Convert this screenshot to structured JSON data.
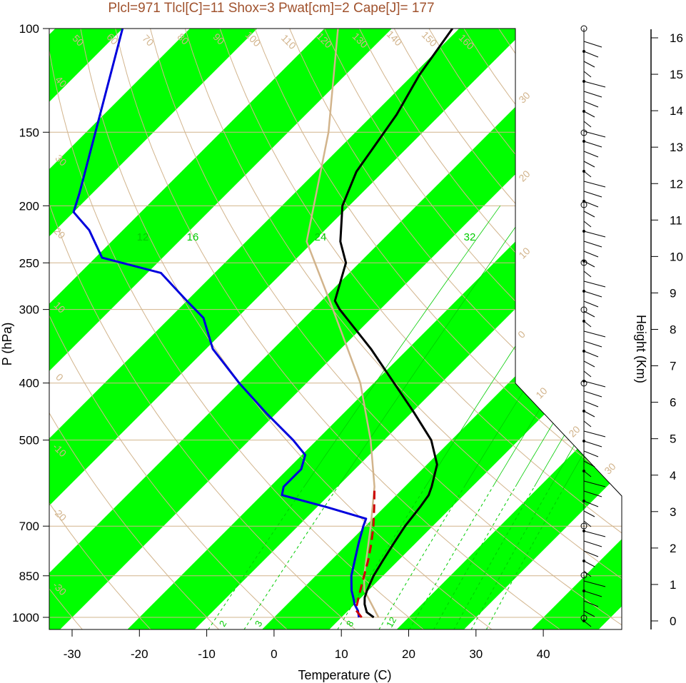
{
  "title": "Plcl=971 Tlcl[C]=11 Shox=3 Pwat[cm]=2 Cape[J]= 177",
  "colors": {
    "band": "#00ff00",
    "isotherm": "#d2b48c",
    "adiabat": "#d2b48c",
    "mixing": "#00cc00",
    "temperature": "#000000",
    "dewpoint": "#0000dd",
    "parcel": "#cc0000",
    "title": "#a0522d"
  },
  "chart_data": {
    "type": "line",
    "subtype": "skew-t log-p",
    "xlabel": "Temperature (C)",
    "ylabel": "P (hPa)",
    "y2label": "Height (Km)",
    "x_ticks": [
      "-30",
      "-20",
      "-10",
      "0",
      "10",
      "20",
      "30",
      "40"
    ],
    "x_tick_values": [
      -30,
      -20,
      -10,
      0,
      10,
      20,
      30,
      40
    ],
    "xlim": [
      -33.5,
      51
    ],
    "y_ticks": [
      "100",
      "150",
      "200",
      "250",
      "300",
      "400",
      "500",
      "700",
      "850",
      "1000"
    ],
    "y_tick_values": [
      100,
      150,
      200,
      250,
      300,
      400,
      500,
      700,
      850,
      1000
    ],
    "ylim": [
      1050,
      100
    ],
    "height_ticks": [
      "0",
      "1",
      "2",
      "3",
      "4",
      "5",
      "6",
      "7",
      "8",
      "9",
      "10",
      "11",
      "12",
      "13",
      "14",
      "15",
      "16"
    ],
    "height_tick_values": [
      0,
      1,
      2,
      3,
      4,
      5,
      6,
      7,
      8,
      9,
      10,
      11,
      12,
      13,
      14,
      15,
      16
    ],
    "isotherm_labels": [
      "50",
      "60",
      "70",
      "80",
      "90",
      "100",
      "110",
      "120",
      "130",
      "140",
      "150",
      "160",
      "40",
      "30",
      "20",
      "10",
      "0",
      "-10",
      "-20",
      "-30"
    ],
    "side_labels": [
      "30",
      "20",
      "10",
      "0",
      "10",
      "20",
      "30"
    ],
    "mixing_labels_top": [
      "12",
      "16",
      "24",
      "32"
    ],
    "mixing_labels_bottom": [
      "2",
      "3",
      "8",
      "12"
    ],
    "temperature": [
      {
        "p": 1000,
        "t": 14.8
      },
      {
        "p": 980,
        "t": 13.0
      },
      {
        "p": 950,
        "t": 11.5
      },
      {
        "p": 925,
        "t": 10.5
      },
      {
        "p": 900,
        "t": 9.8
      },
      {
        "p": 850,
        "t": 8.6
      },
      {
        "p": 800,
        "t": 7.7
      },
      {
        "p": 750,
        "t": 6.8
      },
      {
        "p": 700,
        "t": 5.9
      },
      {
        "p": 650,
        "t": 5.3
      },
      {
        "p": 620,
        "t": 4.8
      },
      {
        "p": 600,
        "t": 4.0
      },
      {
        "p": 550,
        "t": 1.5
      },
      {
        "p": 500,
        "t": -3.0
      },
      {
        "p": 450,
        "t": -9.5
      },
      {
        "p": 400,
        "t": -17.0
      },
      {
        "p": 350,
        "t": -25.5
      },
      {
        "p": 300,
        "t": -36.0
      },
      {
        "p": 290,
        "t": -38.0
      },
      {
        "p": 250,
        "t": -42.0
      },
      {
        "p": 230,
        "t": -46.0
      },
      {
        "p": 200,
        "t": -51.0
      },
      {
        "p": 175,
        "t": -54.0
      },
      {
        "p": 160,
        "t": -55.0
      },
      {
        "p": 140,
        "t": -56.5
      },
      {
        "p": 120,
        "t": -59.0
      },
      {
        "p": 100,
        "t": -61.0
      }
    ],
    "dewpoint": [
      {
        "p": 1000,
        "t": 12.6
      },
      {
        "p": 975,
        "t": 11.5
      },
      {
        "p": 950,
        "t": 10.0
      },
      {
        "p": 925,
        "t": 8.8
      },
      {
        "p": 900,
        "t": 7.5
      },
      {
        "p": 850,
        "t": 5.3
      },
      {
        "p": 800,
        "t": 3.5
      },
      {
        "p": 750,
        "t": 1.6
      },
      {
        "p": 700,
        "t": -0.3
      },
      {
        "p": 680,
        "t": -1.0
      },
      {
        "p": 650,
        "t": -8.5
      },
      {
        "p": 620,
        "t": -17.0
      },
      {
        "p": 600,
        "t": -18.0
      },
      {
        "p": 560,
        "t": -18.0
      },
      {
        "p": 530,
        "t": -19.5
      },
      {
        "p": 500,
        "t": -23.5
      },
      {
        "p": 450,
        "t": -31.5
      },
      {
        "p": 400,
        "t": -40.0
      },
      {
        "p": 350,
        "t": -49.0
      },
      {
        "p": 310,
        "t": -55.0
      },
      {
        "p": 290,
        "t": -60.0
      },
      {
        "p": 260,
        "t": -68.0
      },
      {
        "p": 245,
        "t": -79.0
      },
      {
        "p": 220,
        "t": -85.0
      },
      {
        "p": 205,
        "t": -90.0
      },
      {
        "p": 190,
        "t": -92.0
      },
      {
        "p": 100,
        "t": -110.0
      }
    ],
    "parcel": [
      {
        "p": 1000,
        "t": 13.0
      },
      {
        "p": 971,
        "t": 11.0
      },
      {
        "p": 900,
        "t": 8.8
      },
      {
        "p": 850,
        "t": 7.2
      },
      {
        "p": 800,
        "t": 5.5
      },
      {
        "p": 750,
        "t": 3.5
      },
      {
        "p": 700,
        "t": 1.2
      },
      {
        "p": 650,
        "t": -1.5
      },
      {
        "p": 600,
        "t": -4.5
      }
    ],
    "parcel_trace": [
      {
        "p": 1000,
        "t": 15.5
      },
      {
        "p": 900,
        "t": 9.4
      },
      {
        "p": 850,
        "t": 7.2
      },
      {
        "p": 700,
        "t": 0.8
      },
      {
        "p": 600,
        "t": -4.5
      },
      {
        "p": 500,
        "t": -12.0
      },
      {
        "p": 400,
        "t": -22.0
      },
      {
        "p": 300,
        "t": -37.0
      },
      {
        "p": 230,
        "t": -51.0
      },
      {
        "p": 150,
        "t": -64.0
      },
      {
        "p": 100,
        "t": -78.0
      }
    ]
  }
}
